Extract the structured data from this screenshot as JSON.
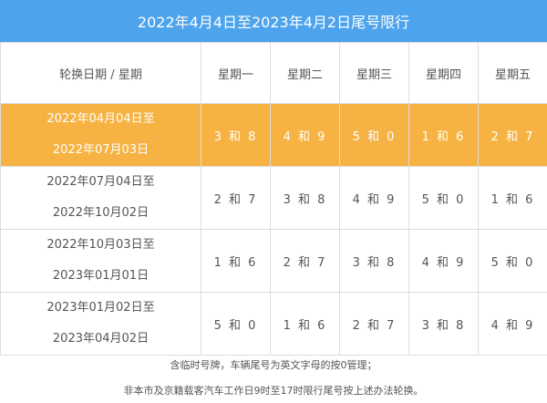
{
  "title": "2022年4月4日至2023年4月2日尾号限行",
  "header": {
    "period_label": "轮换日期 / 星期",
    "days": [
      "星期一",
      "星期二",
      "星期三",
      "星期四",
      "星期五"
    ]
  },
  "rows": [
    {
      "period_start": "2022年04月04日至",
      "period_end": "2022年07月03日",
      "values": [
        "3 和 8",
        "4 和 9",
        "5 和 0",
        "1 和 6",
        "2 和 7"
      ]
    },
    {
      "period_start": "2022年07月04日至",
      "period_end": "2022年10月02日",
      "values": [
        "2 和 7",
        "3 和 8",
        "4 和 9",
        "5 和 0",
        "1 和 6"
      ]
    },
    {
      "period_start": "2022年10月03日至",
      "period_end": "2023年01月01日",
      "values": [
        "1 和 6",
        "2 和 7",
        "3 和 8",
        "4 和 9",
        "5 和 0"
      ]
    },
    {
      "period_start": "2023年01月02日至",
      "period_end": "2023年04月02日",
      "values": [
        "5 和 0",
        "1 和 6",
        "2 和 7",
        "3 和 8",
        "4 和 9"
      ]
    }
  ],
  "notes": [
    "含临时号牌，车辆尾号为英文字母的按0管理；",
    "非本市及京籍载客汽车工作日9时至17时限行尾号按上述办法轮换。"
  ],
  "colors": {
    "title_bg": "#4da3ec",
    "highlight_row": "#f6b243",
    "text": "#555555"
  }
}
